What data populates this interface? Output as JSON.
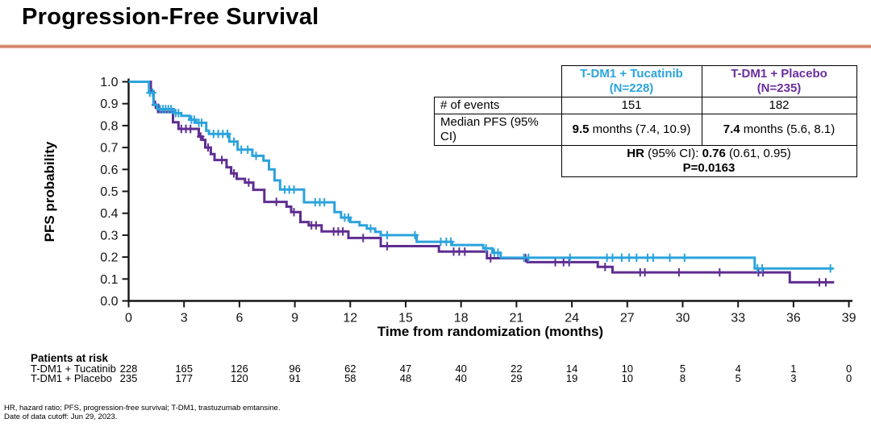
{
  "title": "Progression-Free Survival",
  "accent_rule_color": "#CF7E62",
  "stats_table": {
    "colors": {
      "tucatinib": "#2AA4DC",
      "placebo": "#6B2E9E"
    },
    "header": {
      "col1_line1": "T-DM1 + Tucatinib",
      "col1_line2": "(N=228)",
      "col2_line1": "T-DM1 + Placebo",
      "col2_line2": "(N=235)"
    },
    "events": {
      "label": "# of events",
      "v1": "151",
      "v2": "182"
    },
    "median": {
      "label": "Median PFS (95% CI)",
      "v1_bold": "9.5",
      "v1_rest": " months (7.4, 10.9)",
      "v2_bold": "7.4",
      "v2_rest": " months (5.6, 8.1)"
    },
    "hr_line": {
      "b1": "HR",
      "t1": " (95% CI): ",
      "b2": "0.76",
      "t2": " (0.61, 0.95)"
    },
    "p_line": "P=0.0163"
  },
  "patients_at_risk": {
    "title": "Patients at risk",
    "rows": [
      {
        "label": "T-DM1 + Tucatinib",
        "counts": [
          "228",
          "165",
          "126",
          "96",
          "62",
          "47",
          "40",
          "22",
          "14",
          "10",
          "5",
          "4",
          "1",
          "0"
        ]
      },
      {
        "label": "T-DM1 + Placebo",
        "counts": [
          "235",
          "177",
          "120",
          "91",
          "58",
          "48",
          "40",
          "29",
          "19",
          "10",
          "8",
          "5",
          "3",
          "0"
        ]
      }
    ]
  },
  "footnotes": {
    "line1": "HR, hazard ratio; PFS, progression-free survival; T-DM1, trastuzumab emtansine.",
    "line2": "Date of data cutoff: Jun 29, 2023."
  },
  "chart_data": {
    "type": "line",
    "subtype": "kaplan-meier-step",
    "title": "Progression-Free Survival",
    "xlabel": "Time from randomization (months)",
    "ylabel": "PFS probability",
    "xlim": [
      0,
      39.5
    ],
    "ylim": [
      0,
      1.0
    ],
    "grid": false,
    "xticks": [
      "0",
      "3",
      "6",
      "9",
      "12",
      "15",
      "18",
      "21",
      "24",
      "27",
      "30",
      "33",
      "36",
      "39"
    ],
    "yticks": [
      "0.0",
      "0.1",
      "0.2",
      "0.3",
      "0.4",
      "0.5",
      "0.6",
      "0.7",
      "0.8",
      "0.9",
      "1.0"
    ],
    "series": [
      {
        "id": "placebo",
        "name": "T-DM1 + Placebo",
        "n": 235,
        "median_months": 7.4,
        "color": "#5E2D91",
        "end_t": 38.2,
        "steps": [
          [
            0,
            1.0
          ],
          [
            1.2,
            0.955
          ],
          [
            1.35,
            0.895
          ],
          [
            1.6,
            0.862
          ],
          [
            2.4,
            0.815
          ],
          [
            2.7,
            0.785
          ],
          [
            3.8,
            0.75
          ],
          [
            4.0,
            0.735
          ],
          [
            4.15,
            0.7
          ],
          [
            4.45,
            0.67
          ],
          [
            4.65,
            0.643
          ],
          [
            5.3,
            0.61
          ],
          [
            5.55,
            0.582
          ],
          [
            5.85,
            0.557
          ],
          [
            6.3,
            0.54
          ],
          [
            6.75,
            0.507
          ],
          [
            7.35,
            0.452
          ],
          [
            8.55,
            0.43
          ],
          [
            8.8,
            0.405
          ],
          [
            9.3,
            0.36
          ],
          [
            9.75,
            0.345
          ],
          [
            10.45,
            0.317
          ],
          [
            11.9,
            0.287
          ],
          [
            13.65,
            0.25
          ],
          [
            16.8,
            0.225
          ],
          [
            19.4,
            0.195
          ],
          [
            21.6,
            0.177
          ],
          [
            25.4,
            0.155
          ],
          [
            26.2,
            0.13
          ],
          [
            35.8,
            0.085
          ]
        ],
        "censors": [
          [
            1.45,
            0.895
          ],
          [
            2.85,
            0.785
          ],
          [
            3.1,
            0.785
          ],
          [
            3.35,
            0.785
          ],
          [
            3.9,
            0.75
          ],
          [
            4.3,
            0.7
          ],
          [
            5.05,
            0.643
          ],
          [
            5.7,
            0.582
          ],
          [
            6.5,
            0.54
          ],
          [
            8.0,
            0.452
          ],
          [
            8.95,
            0.405
          ],
          [
            9.9,
            0.345
          ],
          [
            10.15,
            0.345
          ],
          [
            11.1,
            0.317
          ],
          [
            11.35,
            0.317
          ],
          [
            11.6,
            0.317
          ],
          [
            12.7,
            0.287
          ],
          [
            14.0,
            0.25
          ],
          [
            17.6,
            0.225
          ],
          [
            17.9,
            0.225
          ],
          [
            18.2,
            0.225
          ],
          [
            19.6,
            0.195
          ],
          [
            21.5,
            0.195
          ],
          [
            23.1,
            0.177
          ],
          [
            23.55,
            0.177
          ],
          [
            23.85,
            0.177
          ],
          [
            25.8,
            0.155
          ],
          [
            27.7,
            0.13
          ],
          [
            27.95,
            0.13
          ],
          [
            29.8,
            0.13
          ],
          [
            32.0,
            0.13
          ],
          [
            34.1,
            0.13
          ],
          [
            34.35,
            0.13
          ],
          [
            37.4,
            0.085
          ],
          [
            37.75,
            0.085
          ]
        ]
      },
      {
        "id": "tucatinib",
        "name": "T-DM1 + Tucatinib",
        "n": 228,
        "median_months": 9.5,
        "color": "#2BA3DC",
        "end_t": 38.15,
        "steps": [
          [
            0,
            1.0
          ],
          [
            1.1,
            0.95
          ],
          [
            1.35,
            0.895
          ],
          [
            1.55,
            0.875
          ],
          [
            2.45,
            0.857
          ],
          [
            2.85,
            0.845
          ],
          [
            3.3,
            0.827
          ],
          [
            3.65,
            0.813
          ],
          [
            4.2,
            0.777
          ],
          [
            4.35,
            0.762
          ],
          [
            5.45,
            0.727
          ],
          [
            5.9,
            0.69
          ],
          [
            6.7,
            0.662
          ],
          [
            7.3,
            0.64
          ],
          [
            7.6,
            0.6
          ],
          [
            7.9,
            0.55
          ],
          [
            8.2,
            0.508
          ],
          [
            9.5,
            0.45
          ],
          [
            11.15,
            0.405
          ],
          [
            11.5,
            0.38
          ],
          [
            12.0,
            0.36
          ],
          [
            12.5,
            0.345
          ],
          [
            12.9,
            0.33
          ],
          [
            13.35,
            0.315
          ],
          [
            13.65,
            0.3
          ],
          [
            15.6,
            0.27
          ],
          [
            17.5,
            0.255
          ],
          [
            19.2,
            0.24
          ],
          [
            19.7,
            0.22
          ],
          [
            20.15,
            0.197
          ],
          [
            33.9,
            0.148
          ]
        ],
        "censors": [
          [
            1.15,
            0.95
          ],
          [
            1.3,
            0.95
          ],
          [
            1.7,
            0.875
          ],
          [
            1.85,
            0.875
          ],
          [
            2.0,
            0.875
          ],
          [
            2.15,
            0.875
          ],
          [
            2.3,
            0.875
          ],
          [
            2.55,
            0.857
          ],
          [
            2.7,
            0.857
          ],
          [
            3.4,
            0.827
          ],
          [
            3.55,
            0.827
          ],
          [
            3.8,
            0.813
          ],
          [
            3.95,
            0.813
          ],
          [
            4.6,
            0.762
          ],
          [
            4.85,
            0.762
          ],
          [
            5.1,
            0.762
          ],
          [
            5.35,
            0.762
          ],
          [
            5.7,
            0.727
          ],
          [
            6.1,
            0.69
          ],
          [
            6.45,
            0.69
          ],
          [
            6.9,
            0.662
          ],
          [
            8.45,
            0.508
          ],
          [
            8.7,
            0.508
          ],
          [
            8.95,
            0.508
          ],
          [
            10.1,
            0.45
          ],
          [
            10.35,
            0.45
          ],
          [
            10.6,
            0.45
          ],
          [
            11.7,
            0.38
          ],
          [
            11.9,
            0.38
          ],
          [
            13.1,
            0.33
          ],
          [
            14.0,
            0.3
          ],
          [
            15.5,
            0.3
          ],
          [
            16.9,
            0.27
          ],
          [
            17.2,
            0.27
          ],
          [
            17.45,
            0.27
          ],
          [
            19.35,
            0.24
          ],
          [
            19.8,
            0.22
          ],
          [
            20.0,
            0.22
          ],
          [
            21.4,
            0.197
          ],
          [
            21.65,
            0.197
          ],
          [
            23.9,
            0.197
          ],
          [
            25.9,
            0.197
          ],
          [
            26.2,
            0.197
          ],
          [
            26.7,
            0.197
          ],
          [
            27.1,
            0.197
          ],
          [
            27.5,
            0.197
          ],
          [
            28.1,
            0.197
          ],
          [
            28.4,
            0.197
          ],
          [
            29.3,
            0.197
          ],
          [
            30.1,
            0.197
          ],
          [
            34.05,
            0.148
          ],
          [
            34.3,
            0.148
          ],
          [
            38.0,
            0.148
          ]
        ]
      }
    ]
  }
}
